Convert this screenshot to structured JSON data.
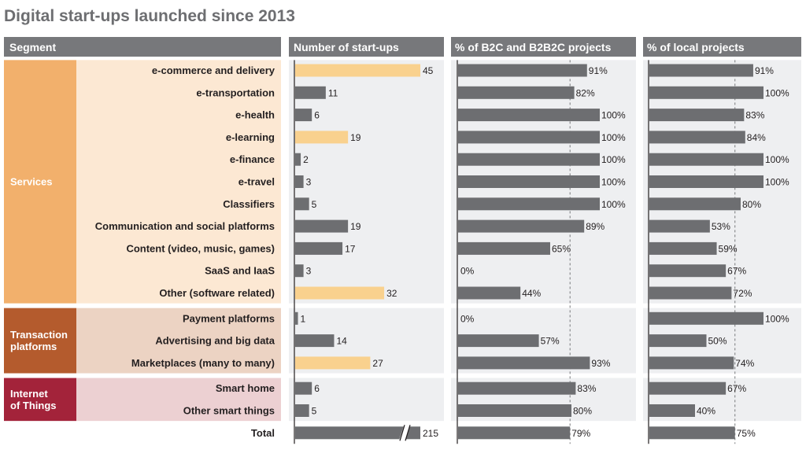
{
  "title": "Digital start-ups launched since 2013",
  "headers": {
    "segment": "Segment",
    "count": "Number of start-ups",
    "b2c": "% of B2C and B2B2C projects",
    "local": "% of local projects"
  },
  "colors": {
    "header_bg": "#77787b",
    "bar_gray": "#6d6e71",
    "bar_highlight": "#f9d18e",
    "services": "#f2b06c",
    "services_light": "#fce8d3",
    "transaction": "#b45b2d",
    "transaction_light": "#ecd3c3",
    "iot": "#a3233a",
    "iot_light": "#ecd0d2",
    "panel_bg": "#eeeff1"
  },
  "groups": [
    {
      "name": "Services",
      "lines": [
        "Services"
      ],
      "first_row": 0,
      "last_row": 10,
      "color_key": "services"
    },
    {
      "name": "Transaction platforms",
      "lines": [
        "Transaction",
        "platforms"
      ],
      "first_row": 11,
      "last_row": 13,
      "color_key": "transaction"
    },
    {
      "name": "Internet of Things",
      "lines": [
        "Internet",
        "of Things"
      ],
      "first_row": 14,
      "last_row": 15,
      "color_key": "iot"
    }
  ],
  "chart_data": {
    "type": "bar",
    "categories": [
      "e-commerce and delivery",
      "e-transportation",
      "e-health",
      "e-learning",
      "e-finance",
      "e-travel",
      "Classifiers",
      "Communication and social platforms",
      "Content (video, music, games)",
      "SaaS and IaaS",
      "Other (software related)",
      "Payment platforms",
      "Advertising and big data",
      "Marketplaces (many to many)",
      "Smart home",
      "Other smart things"
    ],
    "series": [
      {
        "name": "Number of start-ups",
        "values": [
          45,
          11,
          6,
          19,
          2,
          3,
          5,
          19,
          17,
          3,
          32,
          1,
          14,
          27,
          6,
          5
        ],
        "highlight": [
          true,
          false,
          false,
          true,
          false,
          false,
          false,
          false,
          false,
          false,
          true,
          false,
          false,
          true,
          false,
          false
        ],
        "xlim": [
          0,
          45
        ]
      },
      {
        "name": "% of B2C and B2B2C projects",
        "values": [
          91,
          82,
          100,
          100,
          100,
          100,
          100,
          89,
          65,
          0,
          44,
          0,
          57,
          93,
          83,
          80
        ],
        "labels": [
          "91%",
          "82%",
          "100%",
          "100%",
          "100%",
          "100%",
          "100%",
          "89%",
          "65%",
          "0%",
          "44%",
          "0%",
          "57%",
          "93%",
          "83%",
          "80%"
        ],
        "xlim": [
          0,
          100
        ],
        "reference": 79
      },
      {
        "name": "% of local projects",
        "values": [
          91,
          100,
          83,
          84,
          100,
          100,
          80,
          53,
          59,
          67,
          72,
          100,
          50,
          74,
          67,
          40
        ],
        "labels": [
          "91%",
          "100%",
          "83%",
          "84%",
          "100%",
          "100%",
          "80%",
          "53%",
          "59%",
          "67%",
          "72%",
          "100%",
          "50%",
          "74%",
          "67%",
          "40%"
        ],
        "xlim": [
          0,
          100
        ],
        "reference": 75
      }
    ],
    "total": {
      "label": "Total",
      "count": 215,
      "b2c": 79,
      "b2c_label": "79%",
      "local": 75,
      "local_label": "75%"
    }
  }
}
